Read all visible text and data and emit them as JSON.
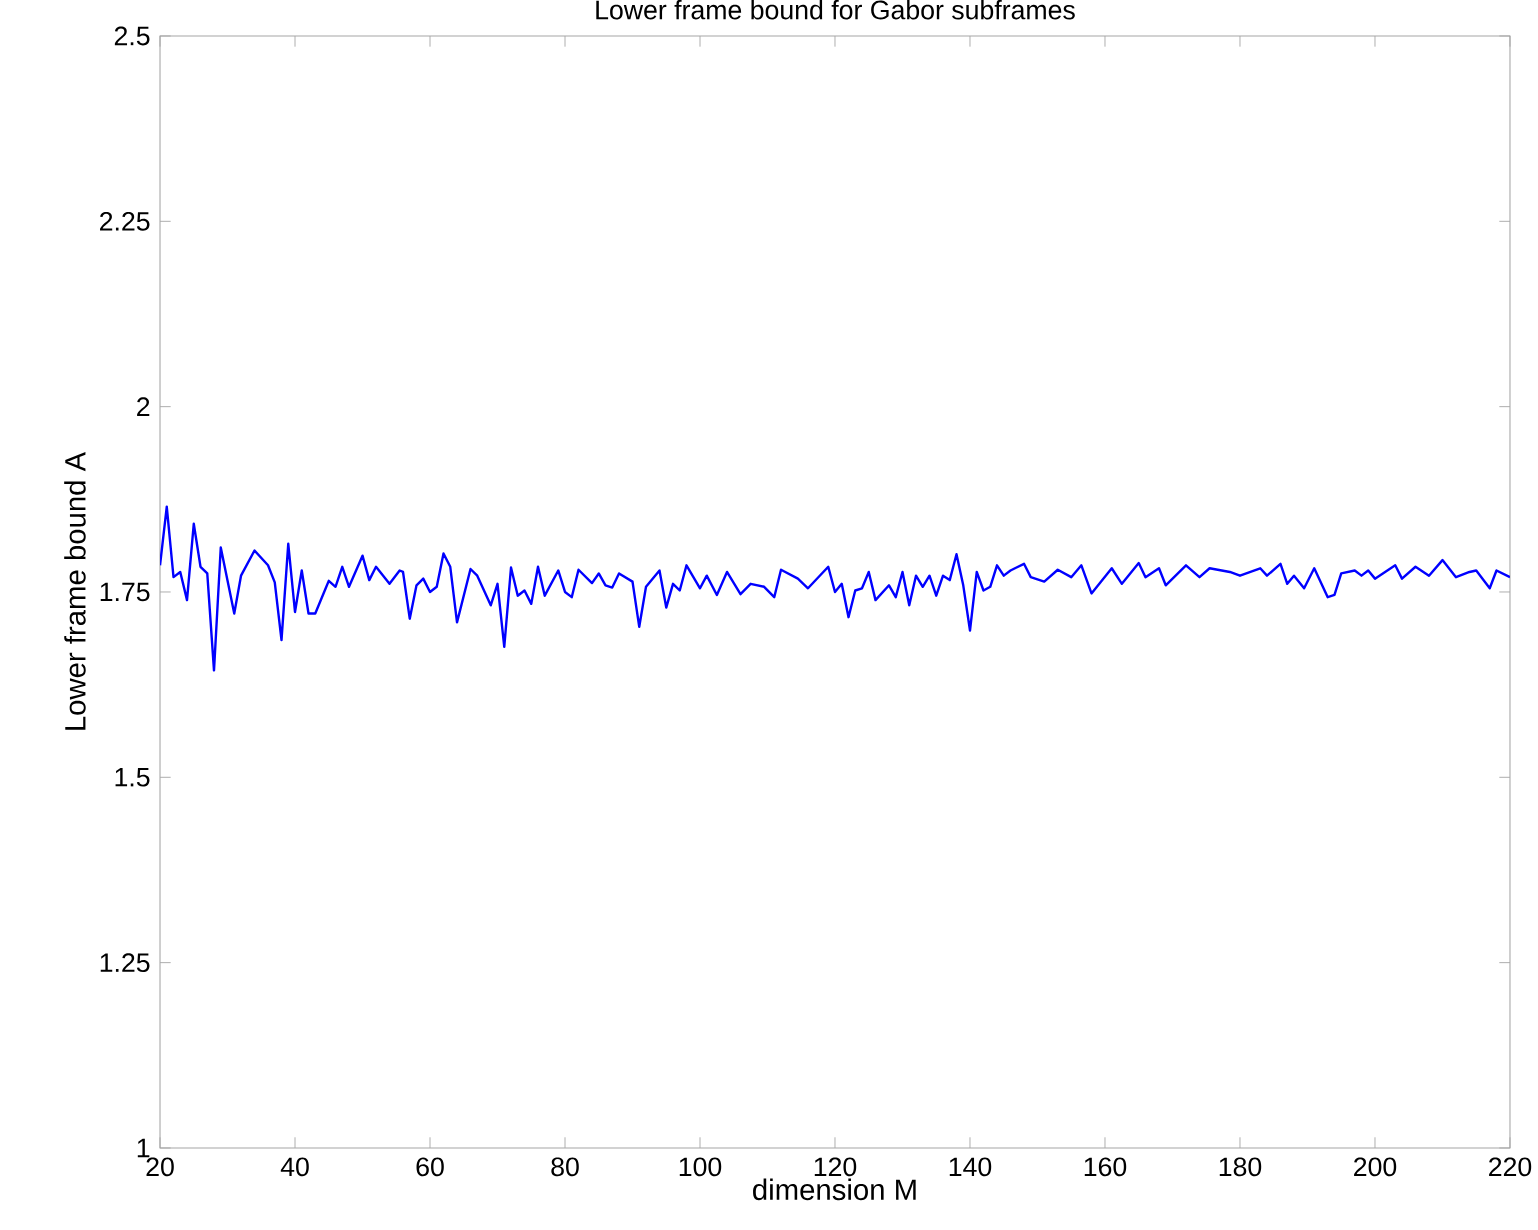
{
  "chart_data": {
    "type": "line",
    "title": "Lower frame bound for Gabor subframes",
    "xlabel": "dimension M",
    "ylabel": "Lower frame bound A",
    "xlim": [
      20,
      220
    ],
    "ylim": [
      1,
      2.5
    ],
    "xticks": [
      20,
      40,
      60,
      80,
      100,
      120,
      140,
      160,
      180,
      200,
      220
    ],
    "yticks": [
      1,
      1.25,
      1.5,
      1.75,
      2,
      2.25,
      2.5
    ],
    "grid": false,
    "marker": "none",
    "line_style": "solid",
    "series": [
      {
        "color": "#0000ff",
        "x": [
          20,
          21,
          22,
          23,
          24,
          25,
          26,
          27,
          28,
          29,
          31,
          32,
          34,
          36,
          37,
          38,
          39,
          40,
          41,
          42,
          43,
          44.5,
          45,
          46,
          47,
          48,
          50,
          51,
          52,
          54,
          55.5,
          56,
          57,
          58,
          59,
          60,
          61,
          62,
          63,
          64,
          66,
          67,
          69,
          70,
          71,
          72,
          73,
          74,
          75,
          76,
          77,
          79,
          80,
          81,
          82,
          84,
          85,
          86,
          87,
          88,
          90,
          91,
          92,
          94,
          95,
          96,
          97,
          98,
          100,
          101,
          102.5,
          104,
          106,
          107.5,
          109.5,
          111,
          112,
          114.5,
          116,
          119,
          120,
          121,
          122,
          123,
          124,
          125,
          126,
          128,
          129,
          130,
          131,
          132,
          133,
          134,
          135,
          136,
          137,
          138,
          139,
          140,
          141,
          142,
          143,
          144,
          145,
          146,
          148,
          149,
          151,
          153,
          155,
          156.5,
          158,
          161,
          162.5,
          165,
          166,
          168,
          169,
          172,
          174,
          175.5,
          178.5,
          180,
          183,
          184,
          186,
          187,
          188,
          189.5,
          191,
          193,
          194,
          195,
          197,
          198,
          199,
          200,
          203,
          204,
          206,
          208,
          210,
          212,
          214,
          215,
          217,
          218,
          220
        ],
        "values": [
          1.786,
          1.865,
          1.77,
          1.777,
          1.739,
          1.842,
          1.784,
          1.775,
          1.644,
          1.81,
          1.721,
          1.772,
          1.806,
          1.786,
          1.763,
          1.685,
          1.815,
          1.723,
          1.779,
          1.721,
          1.721,
          1.754,
          1.765,
          1.757,
          1.784,
          1.757,
          1.799,
          1.766,
          1.784,
          1.761,
          1.779,
          1.777,
          1.714,
          1.759,
          1.768,
          1.75,
          1.757,
          1.802,
          1.784,
          1.709,
          1.781,
          1.772,
          1.732,
          1.761,
          1.676,
          1.783,
          1.745,
          1.752,
          1.734,
          1.784,
          1.745,
          1.779,
          1.75,
          1.743,
          1.78,
          1.762,
          1.775,
          1.759,
          1.756,
          1.775,
          1.764,
          1.703,
          1.757,
          1.779,
          1.729,
          1.761,
          1.752,
          1.786,
          1.755,
          1.772,
          1.746,
          1.777,
          1.747,
          1.761,
          1.757,
          1.743,
          1.78,
          1.768,
          1.755,
          1.784,
          1.75,
          1.761,
          1.716,
          1.752,
          1.755,
          1.777,
          1.739,
          1.759,
          1.743,
          1.777,
          1.732,
          1.772,
          1.757,
          1.772,
          1.745,
          1.772,
          1.766,
          1.801,
          1.759,
          1.698,
          1.777,
          1.752,
          1.757,
          1.786,
          1.772,
          1.779,
          1.788,
          1.77,
          1.764,
          1.78,
          1.77,
          1.786,
          1.748,
          1.782,
          1.761,
          1.789,
          1.77,
          1.782,
          1.759,
          1.786,
          1.77,
          1.782,
          1.777,
          1.772,
          1.782,
          1.772,
          1.788,
          1.761,
          1.772,
          1.755,
          1.782,
          1.743,
          1.746,
          1.775,
          1.779,
          1.772,
          1.779,
          1.768,
          1.786,
          1.768,
          1.784,
          1.772,
          1.793,
          1.77,
          1.777,
          1.779,
          1.755,
          1.779,
          1.77
        ]
      }
    ]
  }
}
